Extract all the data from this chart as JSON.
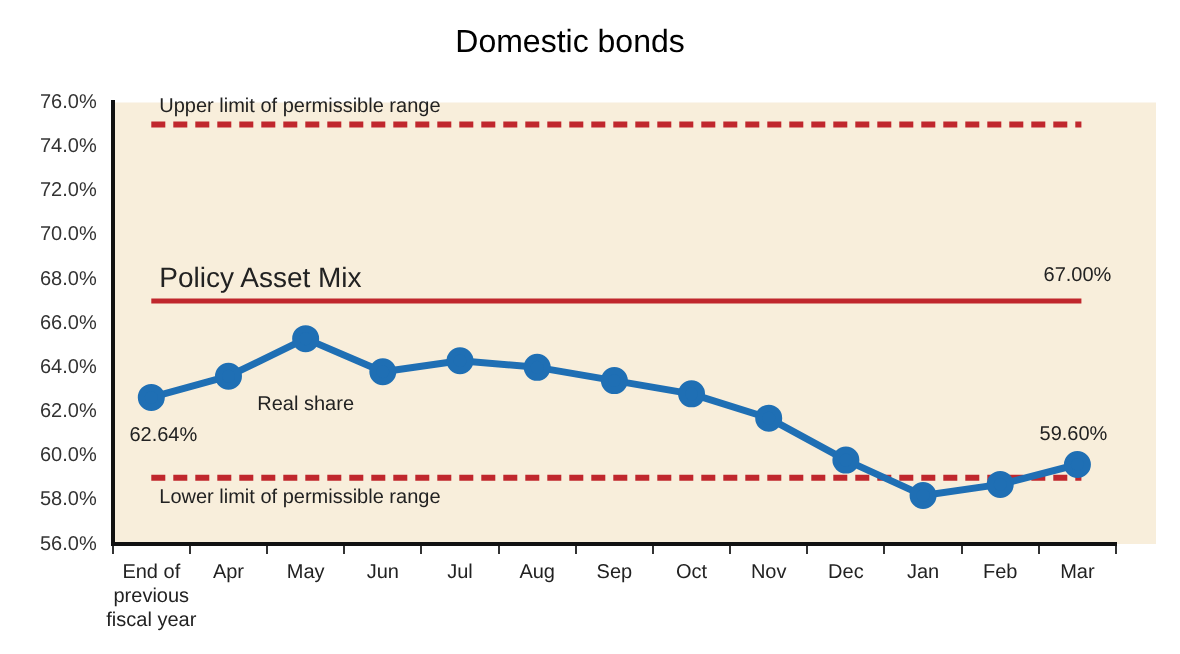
{
  "chart_data": {
    "type": "line",
    "title": "Domestic bonds",
    "categories": [
      "End of previous fiscal year",
      "Apr",
      "May",
      "Jun",
      "Jul",
      "Aug",
      "Sep",
      "Oct",
      "Nov",
      "Dec",
      "Jan",
      "Feb",
      "Mar"
    ],
    "series": [
      {
        "name": "Real share",
        "color": "#1f6fb4",
        "values": [
          62.64,
          63.6,
          65.3,
          63.8,
          64.3,
          64.0,
          63.4,
          62.8,
          61.7,
          59.8,
          58.2,
          58.7,
          59.6
        ],
        "value_labels": [
          "62.64%",
          null,
          null,
          null,
          null,
          null,
          null,
          null,
          null,
          null,
          null,
          null,
          "59.60%"
        ]
      }
    ],
    "ylim": [
      56,
      76
    ],
    "yticks": [
      {
        "value": 56,
        "label": "56.0%"
      },
      {
        "value": 58,
        "label": "58.0%"
      },
      {
        "value": 60,
        "label": "60.0%"
      },
      {
        "value": 62,
        "label": "62.0%"
      },
      {
        "value": 64,
        "label": "64.0%"
      },
      {
        "value": 66,
        "label": "66.0%"
      },
      {
        "value": 68,
        "label": "68.0%"
      },
      {
        "value": 70,
        "label": "70.0%"
      },
      {
        "value": 72,
        "label": "72.0%"
      },
      {
        "value": 74,
        "label": "74.0%"
      },
      {
        "value": 76,
        "label": "76.0%"
      }
    ],
    "ref_lines": [
      {
        "axis": "y",
        "value": 75,
        "label": "Upper limit of permissible range",
        "color": "#c0272d",
        "line_style": "dashed"
      },
      {
        "axis": "y",
        "value": 67,
        "label": "Policy Asset Mix",
        "color": "#c0272d",
        "line_style": "solid"
      },
      {
        "axis": "y",
        "value": 59,
        "label": "Lower limit of permissible range",
        "color": "#c0272d",
        "line_style": "dashed"
      }
    ],
    "annotations": [
      {
        "text": "67.00%",
        "x": "Mar",
        "y": 67
      }
    ],
    "marker": "circle",
    "grid": false,
    "legend": false
  }
}
